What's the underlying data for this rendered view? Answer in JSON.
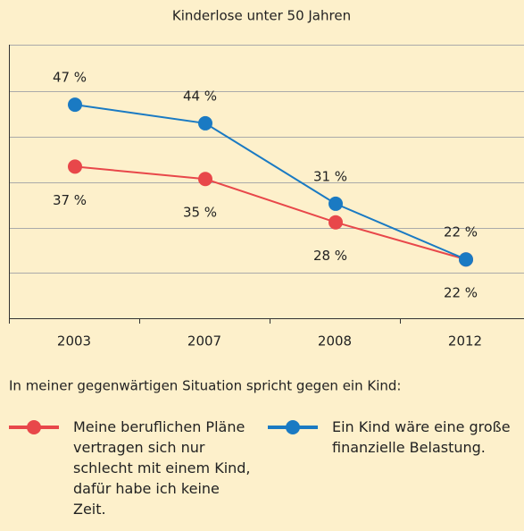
{
  "chart_data": {
    "type": "line",
    "title": "Kinderlose unter 50 Jahren",
    "subtitle": "In meiner gegenwärtigen Situation spricht gegen ein Kind:",
    "categories": [
      "2003",
      "2007",
      "2008",
      "2012"
    ],
    "series": [
      {
        "name": "Meine beruflichen Pläne vertragen sich nur schlecht mit einem Kind, dafür habe ich keine Zeit.",
        "color": "#e8474a",
        "values": [
          37,
          35,
          28,
          22
        ],
        "value_labels": [
          "37 %",
          "35 %",
          "28 %",
          "22 %"
        ]
      },
      {
        "name": "Ein Kind wäre eine große finanzielle Belastung.",
        "color": "#1a7ac3",
        "values": [
          47,
          44,
          31,
          22
        ],
        "value_labels": [
          "47 %",
          "44 %",
          "31 %",
          "22 %"
        ]
      }
    ],
    "ylim": [
      12.5,
      56.7
    ]
  }
}
